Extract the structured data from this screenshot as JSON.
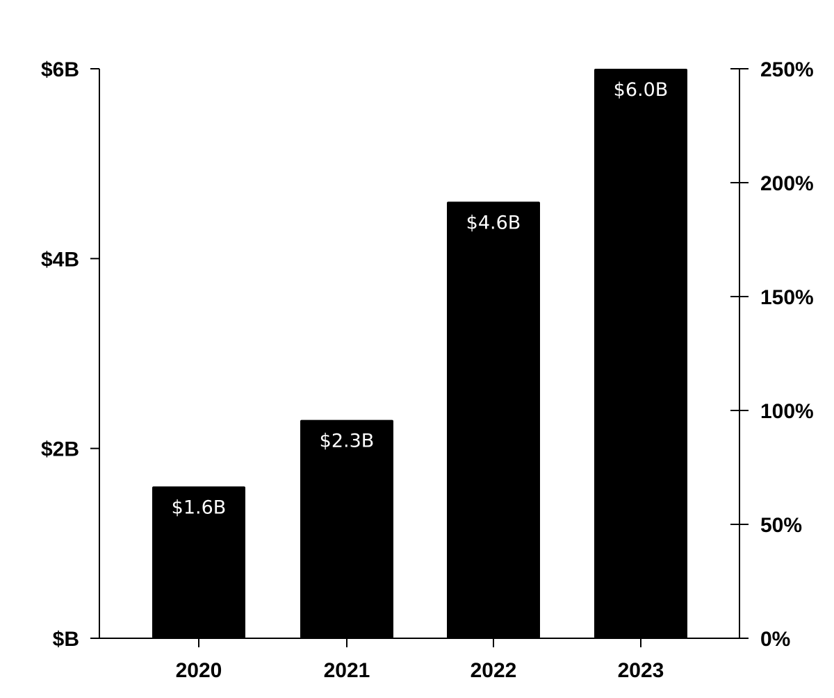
{
  "chart_data": {
    "type": "bar",
    "categories": [
      "2020",
      "2021",
      "2022",
      "2023"
    ],
    "values": [
      1.6,
      2.3,
      4.6,
      6.0
    ],
    "data_labels": [
      "$1.6B",
      "$2.3B",
      "$4.6B",
      "$6.0B"
    ],
    "ylim": [
      0,
      6
    ],
    "y_ticks": [
      {
        "value": 0,
        "label": "$B"
      },
      {
        "value": 2,
        "label": "$2B"
      },
      {
        "value": 4,
        "label": "$4B"
      },
      {
        "value": 6,
        "label": "$6B"
      }
    ],
    "y2lim": [
      0,
      250
    ],
    "y2_ticks": [
      {
        "value": 0,
        "label": "0%"
      },
      {
        "value": 50,
        "label": "50%"
      },
      {
        "value": 100,
        "label": "100%"
      },
      {
        "value": 150,
        "label": "150%"
      },
      {
        "value": 200,
        "label": "200%"
      },
      {
        "value": 250,
        "label": "250%"
      }
    ],
    "title": "",
    "xlabel": "",
    "ylabel": "",
    "grid": false,
    "legend": "none",
    "bar_color": "#000000",
    "label_color": "#ffffff"
  }
}
